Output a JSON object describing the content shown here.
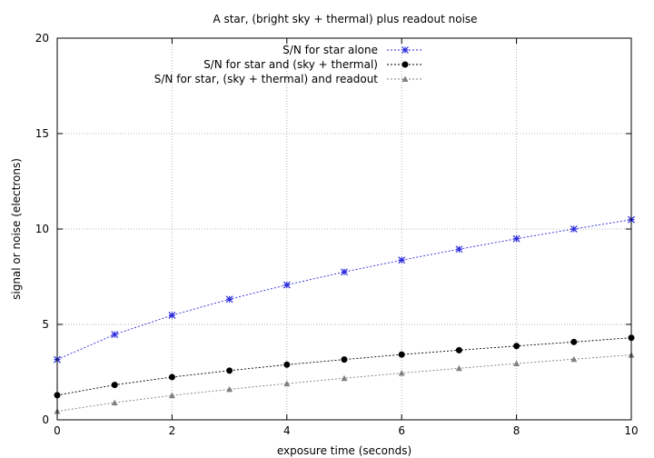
{
  "chart_data": {
    "type": "line",
    "title": "A star, (bright sky + thermal) plus readout noise",
    "xlabel": "exposure time (seconds)",
    "ylabel": "signal or noise (electrons)",
    "xlim": [
      0,
      10
    ],
    "ylim": [
      0,
      20
    ],
    "xticks": [
      0,
      2,
      4,
      6,
      8,
      10
    ],
    "yticks": [
      0,
      5,
      10,
      15,
      20
    ],
    "grid": true,
    "legend_position": "top-right",
    "x": [
      0,
      1,
      2,
      3,
      4,
      5,
      6,
      7,
      8,
      9,
      10
    ],
    "series": [
      {
        "name": "S/N for star alone",
        "color": "#2b2bdc",
        "marker": "star",
        "values": [
          3.16,
          4.47,
          5.48,
          6.32,
          7.07,
          7.75,
          8.37,
          8.94,
          9.49,
          10.0,
          10.49
        ]
      },
      {
        "name": "S/N for star and (sky + thermal)",
        "color": "#000000",
        "marker": "circle",
        "values": [
          1.29,
          1.83,
          2.24,
          2.58,
          2.89,
          3.16,
          3.42,
          3.65,
          3.87,
          4.08,
          4.3
        ]
      },
      {
        "name": "S/N for star, (sky + thermal) and readout",
        "color": "#808080",
        "marker": "triangle",
        "values": [
          0.45,
          0.9,
          1.28,
          1.6,
          1.9,
          2.18,
          2.45,
          2.7,
          2.95,
          3.18,
          3.4
        ]
      }
    ]
  }
}
